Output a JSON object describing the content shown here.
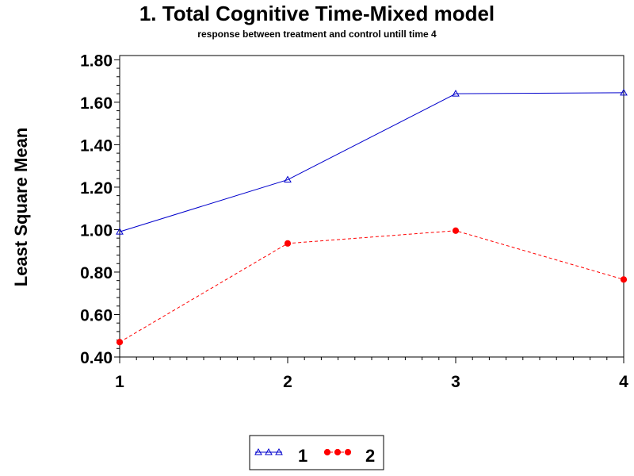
{
  "chart_data": {
    "type": "line",
    "title": "1. Total Cognitive Time-Mixed model",
    "subtitle": "response between treatment and control untill  time 4",
    "xlabel": "",
    "ylabel": "Least Square Mean",
    "x": [
      1,
      2,
      3,
      4
    ],
    "x_tick_labels": [
      "1",
      "2",
      "3",
      "4"
    ],
    "xlim": [
      1,
      4
    ],
    "ylim": [
      0.4,
      1.82
    ],
    "y_ticks": [
      0.4,
      0.6,
      0.8,
      1.0,
      1.2,
      1.4,
      1.6,
      1.8
    ],
    "y_tick_labels": [
      "0.40",
      "0.60",
      "0.80",
      "1.00",
      "1.20",
      "1.40",
      "1.60",
      "1.80"
    ],
    "grid": false,
    "legend_position": "bottom-center",
    "series": [
      {
        "name": "1",
        "values": [
          0.99,
          1.235,
          1.64,
          1.645
        ],
        "color": "#0000cc",
        "marker": "triangle-open",
        "line_style": "solid"
      },
      {
        "name": "2",
        "values": [
          0.47,
          0.935,
          0.995,
          0.765
        ],
        "color": "#ff0000",
        "marker": "circle-filled",
        "line_style": "dashed"
      }
    ]
  }
}
